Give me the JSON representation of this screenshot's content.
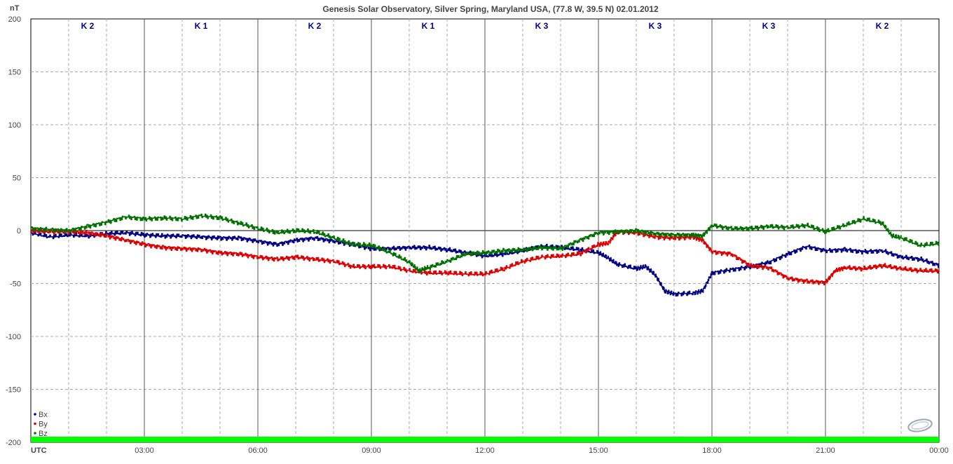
{
  "chart_data": {
    "type": "line",
    "title": "Genesis Solar Observatory, Silver Spring, Maryland USA, (77.8 W, 39.5 N)  02.01.2012",
    "ylabel": "nT",
    "xlabel": "UTC",
    "ylim": [
      -200,
      200
    ],
    "xlim": [
      0,
      24
    ],
    "grid": true,
    "y_ticks": [
      200,
      150,
      100,
      50,
      0,
      -50,
      -100,
      -150,
      -200
    ],
    "x_ticks": [
      {
        "x": 0,
        "label": "UTC"
      },
      {
        "x": 3,
        "label": "03:00"
      },
      {
        "x": 6,
        "label": "06:00"
      },
      {
        "x": 9,
        "label": "09:00"
      },
      {
        "x": 12,
        "label": "12:00"
      },
      {
        "x": 15,
        "label": "15:00"
      },
      {
        "x": 18,
        "label": "18:00"
      },
      {
        "x": 21,
        "label": "21:00"
      },
      {
        "x": 24,
        "label": "00:00"
      }
    ],
    "k_indices": [
      {
        "start": 0,
        "end": 3,
        "label": "K 2"
      },
      {
        "start": 3,
        "end": 6,
        "label": "K 1"
      },
      {
        "start": 6,
        "end": 9,
        "label": "K 2"
      },
      {
        "start": 9,
        "end": 12,
        "label": "K 1"
      },
      {
        "start": 12,
        "end": 15,
        "label": "K 3"
      },
      {
        "start": 15,
        "end": 18,
        "label": "K 3"
      },
      {
        "start": 18,
        "end": 21,
        "label": "K 3"
      },
      {
        "start": 21,
        "end": 24,
        "label": "K 2"
      }
    ],
    "legend_position": "bottom-left",
    "series": [
      {
        "name": "Bx",
        "color": "#000080",
        "points": [
          [
            0,
            -2
          ],
          [
            0.5,
            -6
          ],
          [
            1,
            -4
          ],
          [
            1.5,
            -5
          ],
          [
            2,
            -3
          ],
          [
            2.5,
            -2
          ],
          [
            3,
            -4
          ],
          [
            3.5,
            -5
          ],
          [
            4,
            -5
          ],
          [
            4.5,
            -6
          ],
          [
            5,
            -7
          ],
          [
            5.5,
            -7
          ],
          [
            6,
            -10
          ],
          [
            6.5,
            -13
          ],
          [
            7,
            -9
          ],
          [
            7.5,
            -7
          ],
          [
            8,
            -10
          ],
          [
            8.5,
            -13
          ],
          [
            9,
            -17
          ],
          [
            9.5,
            -17
          ],
          [
            10,
            -16
          ],
          [
            10.5,
            -16
          ],
          [
            11,
            -18
          ],
          [
            11.5,
            -21
          ],
          [
            12,
            -24
          ],
          [
            12.5,
            -22
          ],
          [
            13,
            -19
          ],
          [
            13.5,
            -15
          ],
          [
            14,
            -16
          ],
          [
            14.5,
            -18
          ],
          [
            15,
            -21
          ],
          [
            15.25,
            -26
          ],
          [
            15.5,
            -32
          ],
          [
            16,
            -36
          ],
          [
            16.25,
            -34
          ],
          [
            16.5,
            -42
          ],
          [
            16.75,
            -57
          ],
          [
            17,
            -60
          ],
          [
            17.5,
            -59
          ],
          [
            17.75,
            -57
          ],
          [
            18,
            -40
          ],
          [
            18.5,
            -37
          ],
          [
            19,
            -34
          ],
          [
            19.5,
            -30
          ],
          [
            20,
            -22
          ],
          [
            20.5,
            -15
          ],
          [
            21,
            -19
          ],
          [
            21.5,
            -18
          ],
          [
            22,
            -20
          ],
          [
            22.5,
            -19
          ],
          [
            23,
            -25
          ],
          [
            23.5,
            -27
          ],
          [
            24,
            -33
          ]
        ]
      },
      {
        "name": "By",
        "color": "#dd0000",
        "points": [
          [
            0,
            0
          ],
          [
            0.5,
            -1
          ],
          [
            1,
            -1
          ],
          [
            1.5,
            -2
          ],
          [
            2,
            -5
          ],
          [
            2.5,
            -9
          ],
          [
            3,
            -13
          ],
          [
            3.5,
            -16
          ],
          [
            4,
            -17
          ],
          [
            4.5,
            -18
          ],
          [
            5,
            -21
          ],
          [
            5.5,
            -22
          ],
          [
            6,
            -25
          ],
          [
            6.5,
            -27
          ],
          [
            7,
            -25
          ],
          [
            7.5,
            -27
          ],
          [
            8,
            -29
          ],
          [
            8.5,
            -34
          ],
          [
            9,
            -34
          ],
          [
            9.5,
            -34
          ],
          [
            10,
            -38
          ],
          [
            10.5,
            -40
          ],
          [
            11,
            -40
          ],
          [
            11.5,
            -41
          ],
          [
            12,
            -41
          ],
          [
            12.5,
            -36
          ],
          [
            13,
            -29
          ],
          [
            13.5,
            -25
          ],
          [
            14,
            -24
          ],
          [
            14.5,
            -22
          ],
          [
            15,
            -13
          ],
          [
            15.25,
            -12
          ],
          [
            15.5,
            -1
          ],
          [
            16,
            -2
          ],
          [
            16.5,
            -6
          ],
          [
            17,
            -7
          ],
          [
            17.5,
            -6
          ],
          [
            17.75,
            -9
          ],
          [
            18,
            -20
          ],
          [
            18.5,
            -22
          ],
          [
            19,
            -33
          ],
          [
            19.5,
            -35
          ],
          [
            20,
            -45
          ],
          [
            20.5,
            -48
          ],
          [
            21,
            -49
          ],
          [
            21.25,
            -38
          ],
          [
            21.5,
            -35
          ],
          [
            22,
            -36
          ],
          [
            22.5,
            -33
          ],
          [
            23,
            -36
          ],
          [
            23.5,
            -38
          ],
          [
            24,
            -38
          ]
        ]
      },
      {
        "name": "Bz",
        "color": "#007000",
        "points": [
          [
            0,
            2
          ],
          [
            0.5,
            1
          ],
          [
            1,
            0
          ],
          [
            1.5,
            4
          ],
          [
            2,
            8
          ],
          [
            2.5,
            13
          ],
          [
            3,
            11
          ],
          [
            3.5,
            12
          ],
          [
            4,
            11
          ],
          [
            4.5,
            14
          ],
          [
            5,
            12
          ],
          [
            5.5,
            7
          ],
          [
            6,
            2
          ],
          [
            6.5,
            -2
          ],
          [
            7,
            0
          ],
          [
            7.5,
            -1
          ],
          [
            8,
            -7
          ],
          [
            8.5,
            -13
          ],
          [
            9,
            -14
          ],
          [
            9.5,
            -21
          ],
          [
            10,
            -30
          ],
          [
            10.25,
            -38
          ],
          [
            10.5,
            -35
          ],
          [
            11,
            -29
          ],
          [
            11.5,
            -22
          ],
          [
            12,
            -21
          ],
          [
            12.5,
            -19
          ],
          [
            13,
            -18
          ],
          [
            13.5,
            -16
          ],
          [
            14,
            -17
          ],
          [
            14.5,
            -9
          ],
          [
            15,
            -2
          ],
          [
            15.5,
            -1
          ],
          [
            16,
            0
          ],
          [
            16.5,
            -3
          ],
          [
            17,
            -4
          ],
          [
            17.5,
            -4
          ],
          [
            17.75,
            -5
          ],
          [
            18,
            5
          ],
          [
            18.5,
            2
          ],
          [
            19,
            2
          ],
          [
            19.5,
            4
          ],
          [
            20,
            3
          ],
          [
            20.5,
            5
          ],
          [
            21,
            -1
          ],
          [
            21.5,
            5
          ],
          [
            22,
            11
          ],
          [
            22.5,
            7
          ],
          [
            22.75,
            -5
          ],
          [
            23,
            -7
          ],
          [
            23.5,
            -14
          ],
          [
            24,
            -12
          ]
        ]
      }
    ]
  }
}
